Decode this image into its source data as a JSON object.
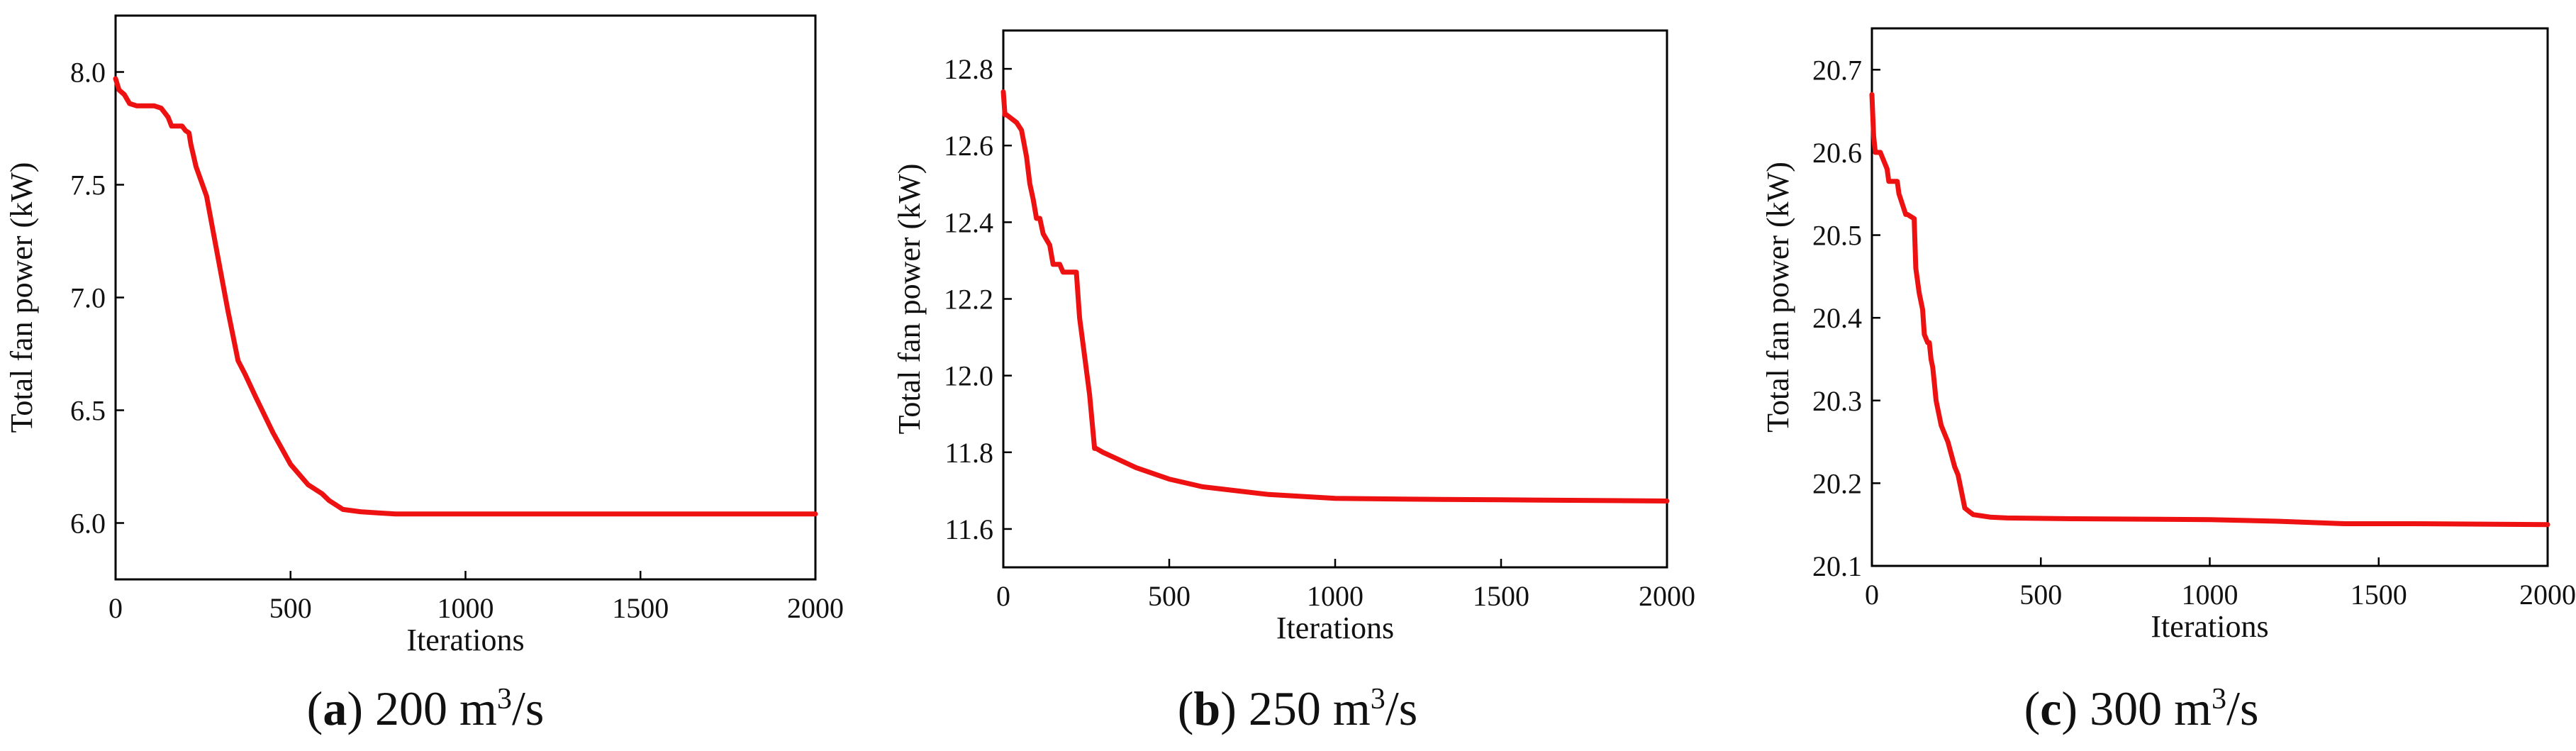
{
  "panels": [
    {
      "letter": "a",
      "caption_value": "200 m",
      "caption_sup": "3",
      "caption_unit": "/s"
    },
    {
      "letter": "b",
      "caption_value": "250 m",
      "caption_sup": "3",
      "caption_unit": "/s"
    },
    {
      "letter": "c",
      "caption_value": "300 m",
      "caption_sup": "3",
      "caption_unit": "/s"
    }
  ],
  "colors": {
    "series": "#ee1111",
    "axis": "#000000",
    "text": "#111111"
  },
  "chart_data": [
    {
      "type": "line",
      "title": "",
      "xlabel": "Iterations",
      "ylabel": "Total fan power (kW)",
      "xlim": [
        0,
        2000
      ],
      "ylim": [
        5.75,
        8.25
      ],
      "xticks": [
        0,
        500,
        1000,
        1500,
        2000
      ],
      "yticks": [
        6.0,
        6.5,
        7.0,
        7.5,
        8.0
      ],
      "ytick_labels": [
        "6.0",
        "6.5",
        "7.0",
        "7.5",
        "8.0"
      ],
      "grid": false,
      "series": [
        {
          "x": [
            0,
            10,
            25,
            40,
            60,
            110,
            130,
            150,
            160,
            190,
            200,
            210,
            215,
            230,
            260,
            290,
            320,
            350,
            370,
            400,
            450,
            500,
            550,
            590,
            610,
            650,
            700,
            750,
            800,
            850,
            900,
            1000,
            1500,
            2000
          ],
          "y": [
            7.97,
            7.92,
            7.9,
            7.86,
            7.85,
            7.85,
            7.84,
            7.8,
            7.76,
            7.76,
            7.74,
            7.73,
            7.68,
            7.58,
            7.45,
            7.2,
            6.95,
            6.72,
            6.66,
            6.56,
            6.4,
            6.26,
            6.17,
            6.13,
            6.1,
            6.06,
            6.05,
            6.045,
            6.04,
            6.04,
            6.04,
            6.04,
            6.04,
            6.04
          ]
        }
      ]
    },
    {
      "type": "line",
      "title": "",
      "xlabel": "Iterations",
      "ylabel": "Total fan power (kW)",
      "xlim": [
        0,
        2000
      ],
      "ylim": [
        11.5,
        12.9
      ],
      "xticks": [
        0,
        500,
        1000,
        1500,
        2000
      ],
      "yticks": [
        11.6,
        11.8,
        12.0,
        12.2,
        12.4,
        12.6,
        12.8
      ],
      "ytick_labels": [
        "11.6",
        "11.8",
        "12.0",
        "12.2",
        "12.4",
        "12.6",
        "12.8"
      ],
      "grid": false,
      "series": [
        {
          "x": [
            0,
            5,
            10,
            40,
            55,
            70,
            80,
            90,
            100,
            110,
            120,
            140,
            150,
            160,
            170,
            180,
            190,
            220,
            230,
            245,
            260,
            275,
            280,
            300,
            350,
            400,
            500,
            600,
            700,
            800,
            1000,
            1200,
            1500,
            2000
          ],
          "y": [
            12.74,
            12.68,
            12.68,
            12.66,
            12.64,
            12.57,
            12.5,
            12.46,
            12.41,
            12.41,
            12.37,
            12.34,
            12.29,
            12.29,
            12.29,
            12.27,
            12.27,
            12.27,
            12.15,
            12.05,
            11.95,
            11.81,
            11.81,
            11.8,
            11.78,
            11.76,
            11.73,
            11.71,
            11.7,
            11.69,
            11.68,
            11.678,
            11.676,
            11.673
          ]
        }
      ]
    },
    {
      "type": "line",
      "title": "",
      "xlabel": "Iterations",
      "ylabel": "Total fan power (kW)",
      "xlim": [
        0,
        2000
      ],
      "ylim": [
        20.1,
        20.75
      ],
      "xticks": [
        0,
        500,
        1000,
        1500,
        2000
      ],
      "yticks": [
        20.1,
        20.2,
        20.3,
        20.4,
        20.5,
        20.6,
        20.7
      ],
      "ytick_labels": [
        "20.1",
        "20.2",
        "20.3",
        "20.4",
        "20.5",
        "20.6",
        "20.7"
      ],
      "grid": false,
      "series": [
        {
          "x": [
            0,
            5,
            10,
            15,
            25,
            45,
            50,
            75,
            80,
            100,
            105,
            125,
            130,
            140,
            150,
            155,
            165,
            170,
            175,
            180,
            185,
            190,
            205,
            215,
            225,
            245,
            255,
            265,
            275,
            290,
            300,
            350,
            400,
            600,
            1000,
            1200,
            1400,
            1600,
            2000
          ],
          "y": [
            20.67,
            20.62,
            20.6,
            20.6,
            20.6,
            20.58,
            20.565,
            20.565,
            20.55,
            20.525,
            20.525,
            20.52,
            20.46,
            20.43,
            20.41,
            20.38,
            20.37,
            20.37,
            20.35,
            20.34,
            20.32,
            20.3,
            20.27,
            20.26,
            20.25,
            20.22,
            20.21,
            20.19,
            20.17,
            20.165,
            20.162,
            20.159,
            20.158,
            20.157,
            20.156,
            20.154,
            20.151,
            20.151,
            20.15
          ]
        }
      ]
    }
  ]
}
